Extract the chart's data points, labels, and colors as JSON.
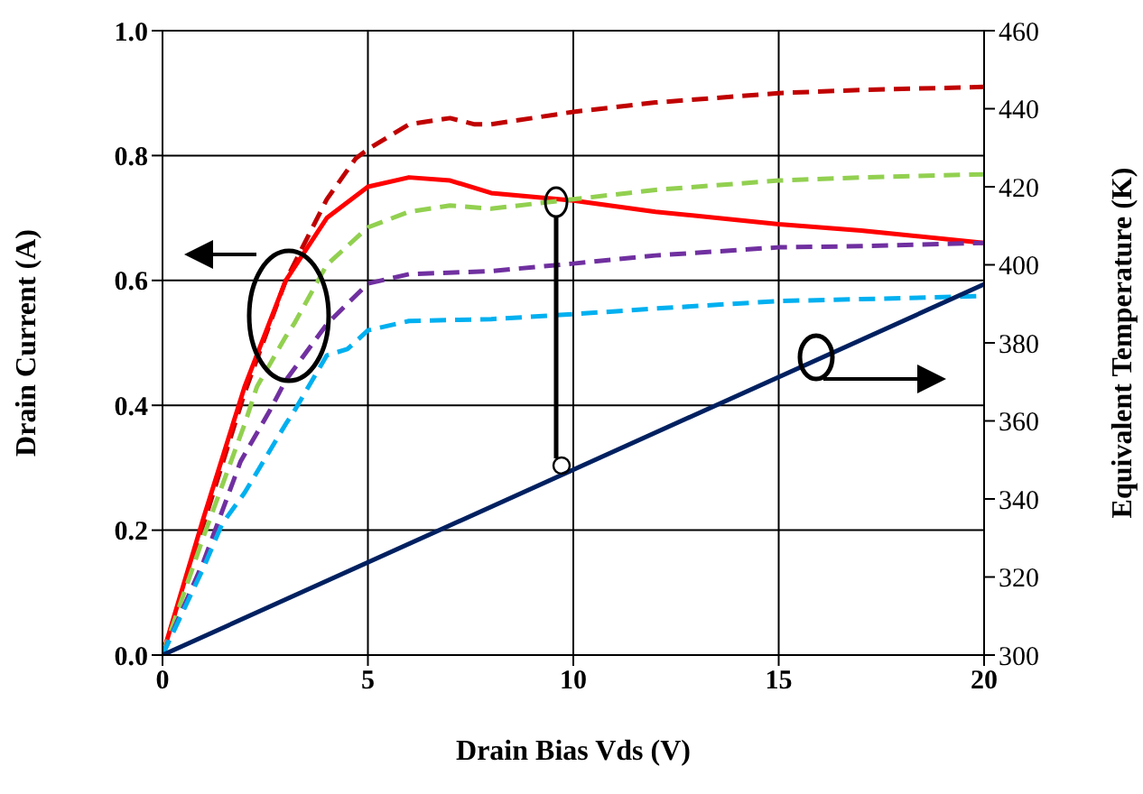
{
  "chart_data": {
    "type": "line",
    "xlabel": "Drain Bias Vds (V)",
    "ylabel": "Drain Current (A)",
    "y2label": "Equivalent Temperature (K)",
    "xlim": [
      0,
      20
    ],
    "xticks": [
      0,
      5,
      10,
      15,
      20
    ],
    "ylim": [
      0,
      1
    ],
    "yticks": [
      {
        "value": 0,
        "label": "0.0"
      },
      0.2,
      0.4,
      0.6,
      0.8,
      {
        "value": 1,
        "label": "1.0"
      }
    ],
    "y2lim": [
      300,
      460
    ],
    "y2ticks": [
      300,
      320,
      340,
      360,
      380,
      400,
      420,
      440,
      460
    ],
    "grid": true,
    "marker": "none",
    "series": [
      {
        "color": "#c00000",
        "line_style": "dashed",
        "x": [
          0,
          1,
          2,
          3,
          4,
          4.7,
          5,
          6,
          7,
          7.6,
          8,
          10,
          12,
          15,
          17,
          20
        ],
        "values": [
          0,
          0.21,
          0.42,
          0.6,
          0.73,
          0.795,
          0.81,
          0.85,
          0.86,
          0.85,
          0.85,
          0.87,
          0.885,
          0.9,
          0.905,
          0.91
        ]
      },
      {
        "color": "#ff0000",
        "line_style": "solid",
        "x": [
          0,
          1,
          2,
          3,
          4,
          5,
          6,
          7,
          8,
          10,
          12,
          15,
          17,
          20
        ],
        "values": [
          0,
          0.22,
          0.43,
          0.6,
          0.7,
          0.75,
          0.765,
          0.76,
          0.74,
          0.728,
          0.71,
          0.69,
          0.68,
          0.66
        ]
      },
      {
        "color": "#92d050",
        "line_style": "dashed",
        "x": [
          0,
          1,
          2,
          2.3,
          3,
          3.2,
          4,
          5,
          6,
          7,
          8,
          10,
          12,
          15,
          17,
          20
        ],
        "values": [
          0,
          0.19,
          0.37,
          0.43,
          0.51,
          0.53,
          0.625,
          0.685,
          0.71,
          0.72,
          0.715,
          0.73,
          0.745,
          0.76,
          0.765,
          0.77
        ]
      },
      {
        "color": "#7030a0",
        "line_style": "dashed",
        "x": [
          0,
          1,
          1.9,
          2.6,
          3,
          4,
          5,
          6,
          8,
          10,
          12,
          15,
          17,
          20
        ],
        "values": [
          0,
          0.15,
          0.31,
          0.39,
          0.44,
          0.53,
          0.595,
          0.61,
          0.615,
          0.627,
          0.64,
          0.653,
          0.655,
          0.66
        ]
      },
      {
        "color": "#00b0f0",
        "line_style": "dashed",
        "x": [
          0,
          1,
          1.45,
          2,
          3,
          3.2,
          4,
          4.5,
          5,
          6,
          8,
          10,
          12,
          15,
          17,
          20
        ],
        "values": [
          0,
          0.14,
          0.21,
          0.26,
          0.37,
          0.39,
          0.48,
          0.49,
          0.52,
          0.535,
          0.538,
          0.546,
          0.555,
          0.567,
          0.57,
          0.575
        ]
      },
      {
        "color": "#002060",
        "line_style": "solid",
        "axis": "y2",
        "x": [
          0,
          20
        ],
        "values": [
          300,
          395
        ]
      }
    ]
  }
}
